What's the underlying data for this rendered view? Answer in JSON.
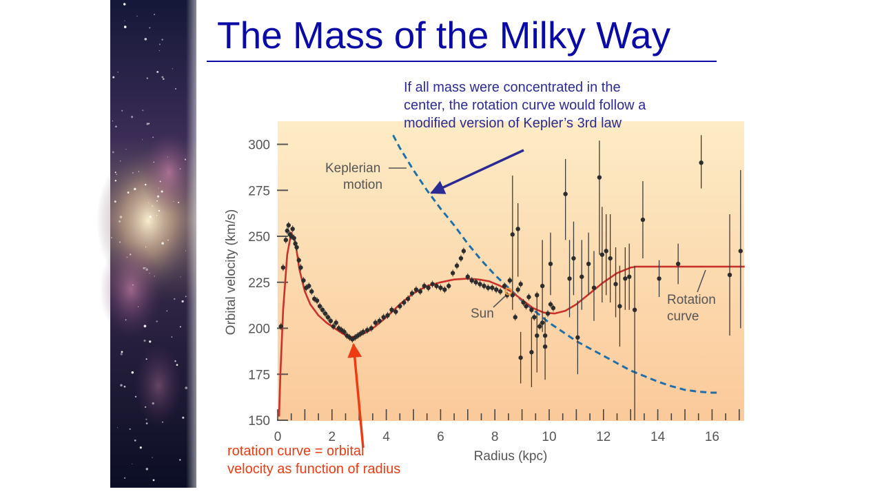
{
  "slide": {
    "title": "The Mass of the Milky Way",
    "note_top": "If all mass were concentrated in the\ncenter, the rotation curve would follow a\nmodified version of Kepler’s 3rd law",
    "note_bottom": "rotation curve = orbital\nvelocity as function of radius"
  },
  "colors": {
    "title": "#0a0aa6",
    "note_top": "#2b2b95",
    "note_bottom": "#ee3b12",
    "rotation_curve": "#c8322a",
    "keplerian": "#1f6fa8",
    "points": "#2d2d2d",
    "sun_marker": "#e89a3c",
    "plot_bg_top": "#fdecc6",
    "plot_bg_bottom": "#fbc99a"
  },
  "chart_data": {
    "type": "scatter",
    "title": "",
    "xlabel": "Radius (kpc)",
    "ylabel": "Orbital velocity (km/s)",
    "xlim": [
      0,
      17.2
    ],
    "ylim": [
      150,
      310
    ],
    "x_ticks": [
      0,
      2,
      4,
      6,
      8,
      10,
      12,
      14,
      16
    ],
    "y_ticks": [
      150,
      175,
      200,
      225,
      250,
      275,
      300
    ],
    "grid": false,
    "annotations": {
      "keplerian_label": "Keplerian\nmotion",
      "rotation_label": "Rotation\ncurve",
      "sun_label": "Sun"
    },
    "sun": {
      "x": 8.5,
      "y": 220
    },
    "rotation_curve": [
      [
        0.05,
        152
      ],
      [
        0.1,
        175
      ],
      [
        0.2,
        210
      ],
      [
        0.35,
        240
      ],
      [
        0.5,
        252
      ],
      [
        0.65,
        247
      ],
      [
        0.8,
        232
      ],
      [
        1.0,
        220
      ],
      [
        1.2,
        213
      ],
      [
        1.5,
        207
      ],
      [
        1.8,
        203
      ],
      [
        2.1,
        200
      ],
      [
        2.4,
        197
      ],
      [
        2.7,
        195
      ],
      [
        3.0,
        196
      ],
      [
        3.3,
        198
      ],
      [
        3.6,
        201
      ],
      [
        4.0,
        206
      ],
      [
        4.5,
        213
      ],
      [
        5.0,
        219
      ],
      [
        5.5,
        223
      ],
      [
        6.0,
        225
      ],
      [
        6.5,
        226.5
      ],
      [
        7.0,
        227
      ],
      [
        7.4,
        226.5
      ],
      [
        7.8,
        225.5
      ],
      [
        8.2,
        223
      ],
      [
        8.6,
        220
      ],
      [
        9.0,
        215.5
      ],
      [
        9.4,
        211
      ],
      [
        9.8,
        208.5
      ],
      [
        10.2,
        208
      ],
      [
        10.6,
        209.5
      ],
      [
        11.0,
        213
      ],
      [
        11.5,
        219
      ],
      [
        12.0,
        225
      ],
      [
        12.5,
        230
      ],
      [
        13.0,
        233
      ],
      [
        13.2,
        233.5
      ],
      [
        14.0,
        233.5
      ],
      [
        15.0,
        233.5
      ],
      [
        16.0,
        233.5
      ],
      [
        17.2,
        233.5
      ]
    ],
    "keplerian_curve": [
      [
        4.25,
        305
      ],
      [
        4.5,
        298
      ],
      [
        5.0,
        286
      ],
      [
        5.5,
        275
      ],
      [
        6.0,
        265
      ],
      [
        6.5,
        256
      ],
      [
        7.0,
        246
      ],
      [
        7.5,
        237
      ],
      [
        8.0,
        229
      ],
      [
        8.5,
        222
      ],
      [
        9.0,
        215
      ],
      [
        9.5,
        209
      ],
      [
        10.0,
        203
      ],
      [
        10.5,
        198
      ],
      [
        11.0,
        193
      ],
      [
        11.5,
        189
      ],
      [
        12.0,
        185
      ],
      [
        12.5,
        181
      ],
      [
        13.0,
        177
      ],
      [
        13.5,
        174
      ],
      [
        14.0,
        171
      ],
      [
        14.5,
        168.5
      ],
      [
        15.0,
        166.5
      ],
      [
        15.5,
        165.5
      ],
      [
        16.0,
        165
      ],
      [
        16.3,
        165
      ]
    ],
    "points": [
      {
        "x": 0.12,
        "y": 201
      },
      {
        "x": 0.2,
        "y": 233
      },
      {
        "x": 0.3,
        "y": 248
      },
      {
        "x": 0.35,
        "y": 253
      },
      {
        "x": 0.4,
        "y": 256
      },
      {
        "x": 0.45,
        "y": 251
      },
      {
        "x": 0.5,
        "y": 250
      },
      {
        "x": 0.55,
        "y": 254
      },
      {
        "x": 0.6,
        "y": 249
      },
      {
        "x": 0.65,
        "y": 246
      },
      {
        "x": 0.7,
        "y": 244
      },
      {
        "x": 0.78,
        "y": 237
      },
      {
        "x": 0.85,
        "y": 233
      },
      {
        "x": 0.95,
        "y": 226
      },
      {
        "x": 1.05,
        "y": 222
      },
      {
        "x": 1.15,
        "y": 223
      },
      {
        "x": 1.25,
        "y": 220
      },
      {
        "x": 1.35,
        "y": 216
      },
      {
        "x": 1.45,
        "y": 215
      },
      {
        "x": 1.55,
        "y": 212
      },
      {
        "x": 1.65,
        "y": 210
      },
      {
        "x": 1.75,
        "y": 208
      },
      {
        "x": 1.85,
        "y": 206
      },
      {
        "x": 1.95,
        "y": 204
      },
      {
        "x": 2.05,
        "y": 201
      },
      {
        "x": 2.15,
        "y": 203
      },
      {
        "x": 2.25,
        "y": 200
      },
      {
        "x": 2.35,
        "y": 199
      },
      {
        "x": 2.45,
        "y": 198
      },
      {
        "x": 2.55,
        "y": 196
      },
      {
        "x": 2.65,
        "y": 195
      },
      {
        "x": 2.75,
        "y": 194
      },
      {
        "x": 2.85,
        "y": 195
      },
      {
        "x": 2.95,
        "y": 196
      },
      {
        "x": 3.05,
        "y": 197
      },
      {
        "x": 3.15,
        "y": 198
      },
      {
        "x": 3.3,
        "y": 199
      },
      {
        "x": 3.45,
        "y": 200
      },
      {
        "x": 3.6,
        "y": 203
      },
      {
        "x": 3.75,
        "y": 204
      },
      {
        "x": 3.9,
        "y": 206
      },
      {
        "x": 4.05,
        "y": 207
      },
      {
        "x": 4.2,
        "y": 210
      },
      {
        "x": 4.35,
        "y": 209
      },
      {
        "x": 4.5,
        "y": 212
      },
      {
        "x": 4.65,
        "y": 214
      },
      {
        "x": 4.8,
        "y": 216
      },
      {
        "x": 4.95,
        "y": 219
      },
      {
        "x": 5.1,
        "y": 221
      },
      {
        "x": 5.25,
        "y": 220
      },
      {
        "x": 5.4,
        "y": 223
      },
      {
        "x": 5.55,
        "y": 222
      },
      {
        "x": 5.7,
        "y": 224
      },
      {
        "x": 5.85,
        "y": 223
      },
      {
        "x": 6.0,
        "y": 222
      },
      {
        "x": 6.15,
        "y": 221
      },
      {
        "x": 6.3,
        "y": 223
      },
      {
        "x": 6.45,
        "y": 230
      },
      {
        "x": 6.6,
        "y": 234
      },
      {
        "x": 6.75,
        "y": 238
      },
      {
        "x": 6.85,
        "y": 242
      },
      {
        "x": 7.0,
        "y": 228
      },
      {
        "x": 7.15,
        "y": 226
      },
      {
        "x": 7.3,
        "y": 225
      },
      {
        "x": 7.45,
        "y": 224
      },
      {
        "x": 7.6,
        "y": 223
      },
      {
        "x": 7.75,
        "y": 222
      },
      {
        "x": 7.9,
        "y": 222
      },
      {
        "x": 8.05,
        "y": 221
      },
      {
        "x": 8.2,
        "y": 220
      },
      {
        "x": 8.35,
        "y": 223
      },
      {
        "x": 8.45,
        "y": 218
      },
      {
        "x": 8.55,
        "y": 226
      },
      {
        "x": 8.65,
        "y": 218
      },
      {
        "x": 8.75,
        "y": 206
      },
      {
        "x": 8.85,
        "y": 221
      },
      {
        "x": 8.95,
        "y": 224
      },
      {
        "x": 9.05,
        "y": 214
      },
      {
        "x": 9.15,
        "y": 212
      },
      {
        "x": 9.25,
        "y": 217
      },
      {
        "x": 9.35,
        "y": 210
      },
      {
        "x": 9.45,
        "y": 206
      },
      {
        "x": 9.55,
        "y": 218
      },
      {
        "x": 9.65,
        "y": 201
      },
      {
        "x": 9.75,
        "y": 203
      },
      {
        "x": 9.85,
        "y": 196
      },
      {
        "x": 9.95,
        "y": 208
      },
      {
        "x": 10.05,
        "y": 213
      },
      {
        "x": 10.15,
        "y": 211
      }
    ],
    "error_points": [
      {
        "x": 8.65,
        "y": 251,
        "low": 210,
        "high": 283
      },
      {
        "x": 8.85,
        "y": 254,
        "low": 228,
        "high": 268
      },
      {
        "x": 8.95,
        "y": 184,
        "low": 170,
        "high": 198
      },
      {
        "x": 9.35,
        "y": 187,
        "low": 168,
        "high": 206
      },
      {
        "x": 9.55,
        "y": 196,
        "low": 176,
        "high": 218
      },
      {
        "x": 9.75,
        "y": 223,
        "low": 198,
        "high": 248
      },
      {
        "x": 9.85,
        "y": 190,
        "low": 172,
        "high": 206
      },
      {
        "x": 10.05,
        "y": 235,
        "low": 218,
        "high": 252
      },
      {
        "x": 10.6,
        "y": 273,
        "low": 248,
        "high": 292
      },
      {
        "x": 10.75,
        "y": 227,
        "low": 206,
        "high": 248
      },
      {
        "x": 10.9,
        "y": 238,
        "low": 218,
        "high": 258
      },
      {
        "x": 11.05,
        "y": 195,
        "low": 175,
        "high": 215
      },
      {
        "x": 11.2,
        "y": 228,
        "low": 210,
        "high": 248
      },
      {
        "x": 11.45,
        "y": 235,
        "low": 218,
        "high": 252
      },
      {
        "x": 11.65,
        "y": 222,
        "low": 204,
        "high": 242
      },
      {
        "x": 11.85,
        "y": 282,
        "low": 240,
        "high": 302
      },
      {
        "x": 11.95,
        "y": 240,
        "low": 214,
        "high": 266
      },
      {
        "x": 12.1,
        "y": 242,
        "low": 218,
        "high": 262
      },
      {
        "x": 12.25,
        "y": 238,
        "low": 214,
        "high": 262
      },
      {
        "x": 12.45,
        "y": 224,
        "low": 206,
        "high": 244
      },
      {
        "x": 12.6,
        "y": 212,
        "low": 190,
        "high": 234
      },
      {
        "x": 12.8,
        "y": 227,
        "low": 210,
        "high": 244
      },
      {
        "x": 12.95,
        "y": 228,
        "low": 210,
        "high": 246
      },
      {
        "x": 13.15,
        "y": 210,
        "low": 150,
        "high": 234
      },
      {
        "x": 13.45,
        "y": 259,
        "low": 238,
        "high": 280
      },
      {
        "x": 14.05,
        "y": 227,
        "low": 217,
        "high": 237
      },
      {
        "x": 14.75,
        "y": 235,
        "low": 224,
        "high": 246
      },
      {
        "x": 15.6,
        "y": 290,
        "low": 276,
        "high": 305
      },
      {
        "x": 16.65,
        "y": 229,
        "low": 196,
        "high": 262
      },
      {
        "x": 17.05,
        "y": 242,
        "low": 200,
        "high": 286
      }
    ]
  }
}
